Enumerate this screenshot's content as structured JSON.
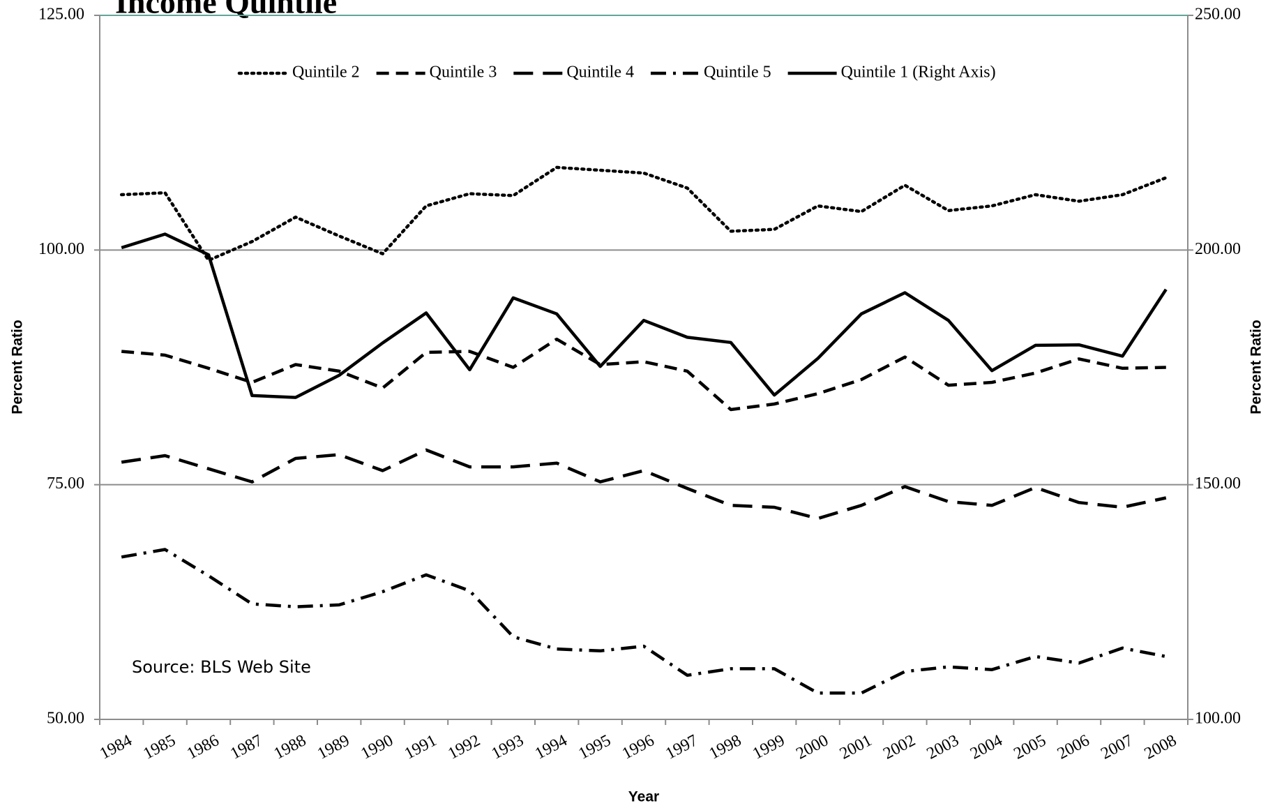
{
  "chart_data": {
    "type": "line",
    "title": "Income Quintile",
    "y_label": "Percent Ratio",
    "y2_label": "Percent Ratio",
    "x_label": "Year",
    "annotation": "Source: BLS Web Site",
    "categories": [
      "1984",
      "1985",
      "1986",
      "1987",
      "1988",
      "1989",
      "1990",
      "1991",
      "1992",
      "1993",
      "1994",
      "1995",
      "1996",
      "1997",
      "1998",
      "1999",
      "2000",
      "2001",
      "2002",
      "2003",
      "2004",
      "2005",
      "2006",
      "2007",
      "2008"
    ],
    "ylim": [
      50,
      125
    ],
    "yticks": [
      {
        "value": 50,
        "label": "50.00"
      },
      {
        "value": 75,
        "label": "75.00"
      },
      {
        "value": 100,
        "label": "100.00"
      },
      {
        "value": 125,
        "label": "125.00"
      }
    ],
    "y2lim": [
      100,
      250
    ],
    "y2ticks": [
      {
        "value": 100,
        "label": "100.00"
      },
      {
        "value": 150,
        "label": "150.00"
      },
      {
        "value": 200,
        "label": "200.00"
      },
      {
        "value": 250,
        "label": "250.00"
      }
    ],
    "grid": true,
    "legend": "top",
    "series": [
      {
        "name": "Quintile 2",
        "color": "#000000",
        "line_style": "dotted",
        "values": [
          105.9,
          106.1,
          98.9,
          100.9,
          103.5,
          101.5,
          99.6,
          104.7,
          106.0,
          105.8,
          108.8,
          108.5,
          108.2,
          106.6,
          102.0,
          102.2,
          104.7,
          104.1,
          106.9,
          104.2,
          104.7,
          105.9,
          105.2,
          105.9,
          107.7
        ]
      },
      {
        "name": "Quintile 3",
        "color": "#000000",
        "line_style": "dashed",
        "values": [
          89.2,
          88.8,
          87.4,
          85.9,
          87.8,
          87.1,
          85.3,
          89.1,
          89.2,
          87.5,
          90.5,
          87.8,
          88.1,
          87.1,
          83.0,
          83.6,
          84.7,
          86.2,
          88.6,
          85.6,
          85.9,
          86.9,
          88.4,
          87.4,
          87.5
        ]
      },
      {
        "name": "Quintile 4",
        "color": "#000000",
        "line_style": "long-dashed",
        "values": [
          77.4,
          78.1,
          76.7,
          75.3,
          77.8,
          78.2,
          76.5,
          78.7,
          76.9,
          76.9,
          77.3,
          75.3,
          76.5,
          74.6,
          72.8,
          72.6,
          71.4,
          72.8,
          74.8,
          73.2,
          72.8,
          74.7,
          73.1,
          72.6,
          73.6
        ]
      },
      {
        "name": "Quintile 5",
        "color": "#000000",
        "line_style": "dash-dot",
        "values": [
          67.3,
          68.1,
          65.3,
          62.3,
          62.0,
          62.2,
          63.6,
          65.4,
          63.7,
          58.8,
          57.5,
          57.3,
          57.8,
          54.7,
          55.4,
          55.4,
          52.8,
          52.8,
          55.1,
          55.6,
          55.3,
          56.7,
          56.0,
          57.6,
          56.7
        ]
      },
      {
        "name": "Quintile 1 (Right Axis)",
        "color": "#000000",
        "line_style": "solid",
        "axis": "y2",
        "values": [
          200.5,
          203.4,
          199.0,
          169.0,
          168.6,
          173.3,
          180.2,
          186.6,
          174.5,
          189.8,
          186.4,
          175.2,
          185.0,
          181.4,
          180.3,
          169.1,
          176.9,
          186.4,
          190.9,
          185.0,
          174.3,
          179.7,
          179.8,
          177.4,
          191.6
        ]
      }
    ]
  }
}
